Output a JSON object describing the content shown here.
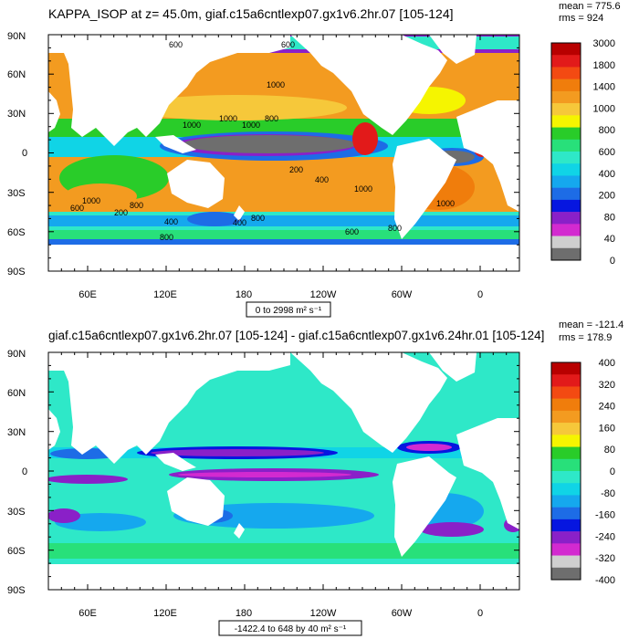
{
  "chart_data": [
    {
      "type": "heatmap",
      "title": "KAPPA_ISOP at z=  45.0m, giaf.c15a6cntlexp07.gx1v6.2hr.07 [105-124]",
      "stats": [
        "mean = 775.6",
        "rms = 924"
      ],
      "range_label": "0 to 2998 m² s⁻¹",
      "ylabels": [
        "90N",
        "60N",
        "30N",
        "0",
        "30S",
        "60S",
        "90S"
      ],
      "xlabels": [
        "60E",
        "120E",
        "180",
        "120W",
        "60W",
        "0"
      ],
      "xrange": [
        30,
        390
      ],
      "yrange": [
        -90,
        90
      ],
      "colorbar": {
        "levels": [
          "3000",
          "1800",
          "1400",
          "1000",
          "800",
          "600",
          "400",
          "200",
          "80",
          "40",
          "0"
        ],
        "colors": [
          "#b80000",
          "#e21a1a",
          "#f34a12",
          "#f07d0c",
          "#f39b20",
          "#f6c83a",
          "#f5f500",
          "#29cc29",
          "#28e07a",
          "#2ee8c8",
          "#10d4e6",
          "#15a8ee",
          "#1d6ce6",
          "#0616e0",
          "#8a20c8",
          "#d32ad0",
          "#cfcfcf",
          "#6e6e6e"
        ]
      },
      "contour_labels": [
        "600",
        "600",
        "1000",
        "1000",
        "1000",
        "800",
        "1000",
        "400",
        "1000",
        "200",
        "600",
        "200",
        "400",
        "800",
        "400",
        "600",
        "800",
        "800",
        "800",
        "1000",
        "1000"
      ]
    },
    {
      "type": "heatmap",
      "title": "giaf.c15a6cntlexp07.gx1v6.2hr.07 [105-124] - giaf.c15a6cntlexp07.gx1v6.24hr.01 [105-124]",
      "stats": [
        "mean = -121.4",
        "rms = 178.9"
      ],
      "range_label": "-1422.4 to 648 by 40 m² s⁻¹",
      "ylabels": [
        "90N",
        "60N",
        "30N",
        "0",
        "30S",
        "60S",
        "90S"
      ],
      "xlabels": [
        "60E",
        "120E",
        "180",
        "120W",
        "60W",
        "0"
      ],
      "xrange": [
        30,
        390
      ],
      "yrange": [
        -90,
        90
      ],
      "colorbar": {
        "levels": [
          "400",
          "320",
          "240",
          "160",
          "80",
          "0",
          "-80",
          "-160",
          "-240",
          "-320",
          "-400"
        ],
        "colors": [
          "#b80000",
          "#e21a1a",
          "#f34a12",
          "#f07d0c",
          "#f39b20",
          "#f6c83a",
          "#f5f500",
          "#29cc29",
          "#28e07a",
          "#2ee8c8",
          "#10d4e6",
          "#15a8ee",
          "#1d6ce6",
          "#0616e0",
          "#8a20c8",
          "#d32ad0",
          "#cfcfcf",
          "#6e6e6e"
        ]
      }
    }
  ]
}
